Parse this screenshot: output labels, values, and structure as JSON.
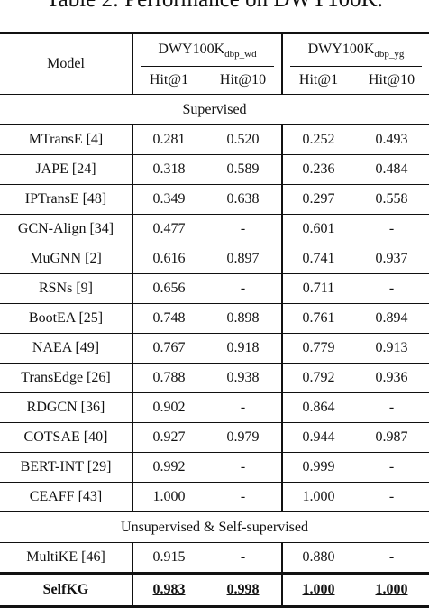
{
  "caption": "Table 2: Performance on DWY100K.",
  "header": {
    "model": "Model",
    "groups": [
      {
        "base": "DWY100K",
        "sub": "dbp_wd"
      },
      {
        "base": "DWY100K",
        "sub": "dbp_yg"
      }
    ],
    "metrics": [
      "Hit@1",
      "Hit@10",
      "Hit@1",
      "Hit@10"
    ]
  },
  "sections": {
    "supervised": "Supervised",
    "unsupervised": "Unsupervised & Self-supervised"
  },
  "rows": [
    {
      "model": "MTransE [4]",
      "v": [
        "0.281",
        "0.520",
        "0.252",
        "0.493"
      ]
    },
    {
      "model": "JAPE [24]",
      "v": [
        "0.318",
        "0.589",
        "0.236",
        "0.484"
      ]
    },
    {
      "model": "IPTransE [48]",
      "v": [
        "0.349",
        "0.638",
        "0.297",
        "0.558"
      ]
    },
    {
      "model": "GCN-Align [34]",
      "v": [
        "0.477",
        "-",
        "0.601",
        "-"
      ]
    },
    {
      "model": "MuGNN [2]",
      "v": [
        "0.616",
        "0.897",
        "0.741",
        "0.937"
      ]
    },
    {
      "model": "RSNs [9]",
      "v": [
        "0.656",
        "-",
        "0.711",
        "-"
      ]
    },
    {
      "model": "BootEA [25]",
      "v": [
        "0.748",
        "0.898",
        "0.761",
        "0.894"
      ]
    },
    {
      "model": "NAEA [49]",
      "v": [
        "0.767",
        "0.918",
        "0.779",
        "0.913"
      ]
    },
    {
      "model": "TransEdge [26]",
      "v": [
        "0.788",
        "0.938",
        "0.792",
        "0.936"
      ]
    },
    {
      "model": "RDGCN [36]",
      "v": [
        "0.902",
        "-",
        "0.864",
        "-"
      ]
    },
    {
      "model": "COTSAE [40]",
      "v": [
        "0.927",
        "0.979",
        "0.944",
        "0.987"
      ]
    },
    {
      "model": "BERT-INT [29]",
      "v": [
        "0.992",
        "-",
        "0.999",
        "-"
      ]
    },
    {
      "model": "CEAFF [43]",
      "v": [
        "1.000",
        "-",
        "1.000",
        "-"
      ]
    }
  ],
  "unsup_rows": [
    {
      "model": "MultiKE [46]",
      "v": [
        "0.915",
        "-",
        "0.880",
        "-"
      ]
    }
  ],
  "final": {
    "model": "SelfKG",
    "v": [
      "0.983",
      "0.998",
      "1.000",
      "1.000"
    ]
  }
}
